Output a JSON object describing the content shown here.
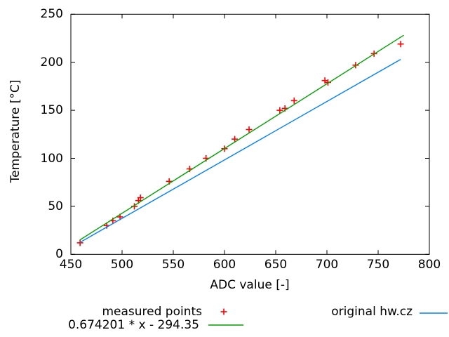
{
  "chart_data": {
    "type": "scatter",
    "title": "",
    "xlabel": "ADC value [-]",
    "ylabel": "Temperature [°C]",
    "xlim": [
      450,
      800
    ],
    "ylim": [
      0,
      250
    ],
    "xticks": [
      450,
      500,
      550,
      600,
      650,
      700,
      750,
      800
    ],
    "yticks": [
      0,
      50,
      100,
      150,
      200,
      250
    ],
    "grid": false,
    "legend_position": "below-plot",
    "background": "#ffffff",
    "border_color": "#000000",
    "series": [
      {
        "name": "measured points",
        "type": "points",
        "marker": "plus",
        "color": "#ff0000",
        "points": [
          [
            459,
            12
          ],
          [
            485,
            30
          ],
          [
            491,
            35
          ],
          [
            498,
            39
          ],
          [
            512,
            50
          ],
          [
            516,
            56
          ],
          [
            518,
            59
          ],
          [
            546,
            76
          ],
          [
            566,
            89
          ],
          [
            582,
            100
          ],
          [
            600,
            110
          ],
          [
            610,
            120
          ],
          [
            624,
            130
          ],
          [
            654,
            150
          ],
          [
            659,
            152
          ],
          [
            668,
            160
          ],
          [
            698,
            181
          ],
          [
            701,
            179
          ],
          [
            728,
            197
          ],
          [
            746,
            209
          ],
          [
            772,
            219
          ]
        ]
      },
      {
        "name": "0.674201 * x - 294.35",
        "type": "line",
        "color": "#00a000",
        "equation": {
          "slope": 0.674201,
          "intercept": -294.35
        },
        "x_range": [
          459,
          775
        ]
      },
      {
        "name": "original hw.cz",
        "type": "line",
        "color": "#0080ff",
        "points": [
          [
            459,
            12.5
          ],
          [
            772,
            203
          ]
        ]
      }
    ]
  }
}
